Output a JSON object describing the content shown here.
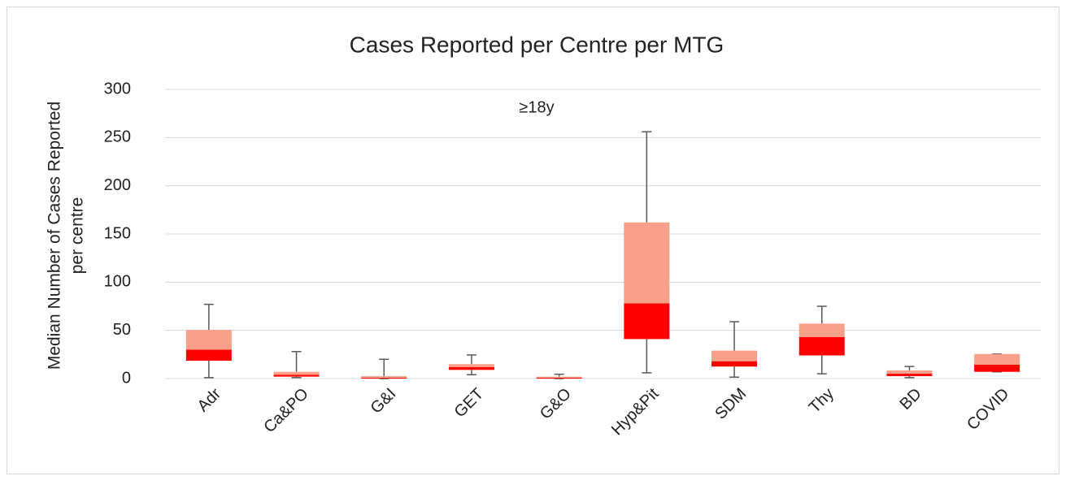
{
  "chart_data": {
    "type": "box",
    "title": "Cases Reported per Centre per MTG",
    "annotation": "≥18y",
    "ylabel": [
      "Median Number of Cases Reported",
      "per centre"
    ],
    "categories": [
      "Adr",
      "Ca&PO",
      "G&I",
      "GET",
      "G&O",
      "Hyp&Pit",
      "SDM",
      "Thy",
      "BD",
      "COVID"
    ],
    "min": [
      1,
      1,
      0,
      4,
      0,
      6,
      1.5,
      5,
      1,
      7
    ],
    "q1": [
      18.5,
      2,
      0,
      9,
      0,
      41,
      12.5,
      24,
      2.5,
      7
    ],
    "median": [
      30,
      4,
      1,
      12,
      1,
      78,
      18,
      43,
      5,
      14.5
    ],
    "q3": [
      50.5,
      7,
      2.5,
      15,
      2,
      162,
      29,
      57,
      8.5,
      25.5
    ],
    "max": [
      77,
      28,
      20,
      24.5,
      4.5,
      256,
      59,
      75,
      12.5,
      25.5
    ],
    "lower_color": "#ff0000",
    "upper_color": "#f8a08a",
    "whisker_color": "#595959",
    "ylim": [
      0,
      300
    ],
    "yticks": [
      0,
      50,
      100,
      150,
      200,
      250,
      300
    ],
    "grid": true
  }
}
